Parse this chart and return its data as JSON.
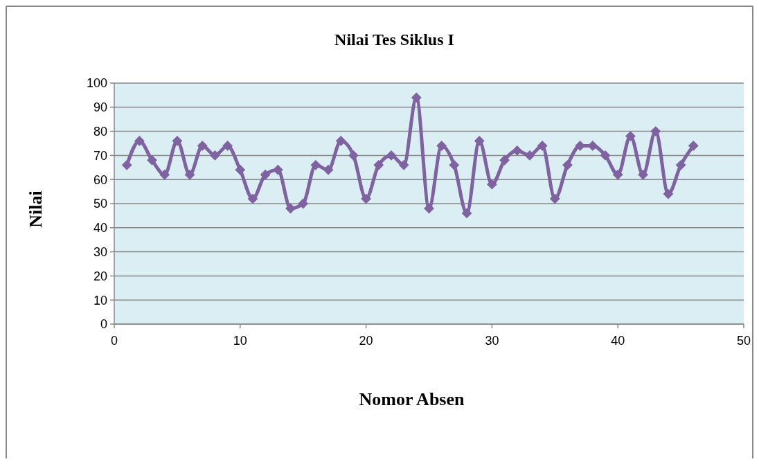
{
  "chart_data": {
    "type": "line",
    "title": "Nilai Tes Siklus I",
    "xlabel": "Nomor Absen",
    "ylabel": "Nilai",
    "x": [
      1,
      2,
      3,
      4,
      5,
      6,
      7,
      8,
      9,
      10,
      11,
      12,
      13,
      14,
      15,
      16,
      17,
      18,
      19,
      20,
      21,
      22,
      23,
      24,
      25,
      26,
      27,
      28,
      29,
      30,
      31,
      32,
      33,
      34,
      35,
      36,
      37,
      38,
      39,
      40,
      41,
      42,
      43,
      44,
      45,
      46
    ],
    "series": [
      {
        "color": "#7f63a1",
        "values": [
          66,
          76,
          68,
          62,
          76,
          62,
          74,
          70,
          74,
          64,
          52,
          62,
          64,
          48,
          50,
          66,
          64,
          76,
          70,
          52,
          66,
          70,
          66,
          94,
          48,
          74,
          66,
          46,
          76,
          58,
          68,
          72,
          70,
          74,
          52,
          66,
          74,
          74,
          70,
          62,
          78,
          62,
          80,
          54,
          66,
          74
        ]
      }
    ],
    "xlim": [
      0,
      50
    ],
    "xticks": [
      0,
      10,
      20,
      30,
      40,
      50
    ],
    "ylim": [
      0,
      100
    ],
    "yticks": [
      0,
      10,
      20,
      30,
      40,
      50,
      60,
      70,
      80,
      90,
      100
    ],
    "grid": "y",
    "marker": "diamond",
    "line_style": "solid"
  }
}
